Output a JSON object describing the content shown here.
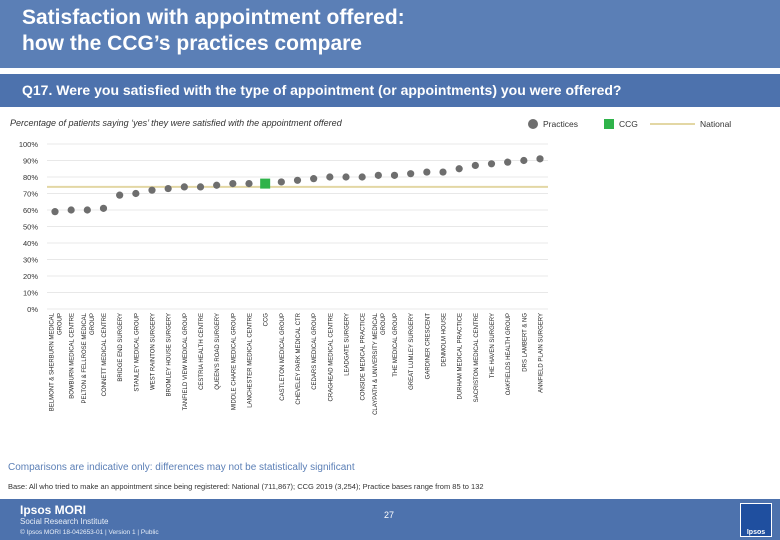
{
  "header": {
    "title_line1": "Satisfaction with appointment offered:",
    "title_line2": "how the CCG’s practices compare"
  },
  "question": "Q17. Were you satisfied with the type of appointment (or appointments) you were offered?",
  "subtitle": "Percentage of patients saying ‘yes’ they were satisfied with the appointment offered",
  "legend": {
    "practices": "Practices",
    "ccg": "CCG",
    "national": "National"
  },
  "colors": {
    "practice": "#6e6e6e",
    "ccg": "#2fb34a",
    "national": "#e3d7a4",
    "grid": "#e8e8e8",
    "header": "#5b7fb6"
  },
  "chart_data": {
    "type": "scatter",
    "title": "Percentage of patients saying ‘yes’ they were satisfied with the appointment offered",
    "ylim": [
      0,
      100
    ],
    "yticks": [
      "0%",
      "10%",
      "20%",
      "30%",
      "40%",
      "50%",
      "60%",
      "70%",
      "80%",
      "90%",
      "100%"
    ],
    "national_value": 74,
    "ccg_value": 76,
    "categories": [
      "BELMONT & SHERBURN MEDICAL GROUP",
      "BOWBURN MEDICAL CENTRE",
      "PELTON & FELLROSE MEDICAL GROUP",
      "CONNETT MEDICAL CENTRE",
      "BRIDGE END SURGERY",
      "STANLEY MEDICAL GROUP",
      "WEST RAINTON SURGERY",
      "BROMLEY HOUSE SURGERY",
      "TANFIELD VIEW MEDICAL GROUP",
      "CESTRIA HEALTH CENTRE",
      "QUEEN'S ROAD SURGERY",
      "MIDDLE CHARE MEDICAL GROUP",
      "LANCHESTER MEDICAL CENTRE",
      "CCG",
      "CASTLETON MEDICAL GROUP",
      "CHEVELEY PARK MEDICAL CTR",
      "CEDARS MEDICAL GROUP",
      "CRAGHEAD MEDICAL CENTRE",
      "LEADGATE SURGERY",
      "CONSIDE MEDICAL PRACTICE",
      "CLAYPATH & UNIVERSITY MEDICAL GROUP",
      "THE MEDICAL GROUP",
      "GREAT LUMLEY SURGERY",
      "GARDINER CRESCENT",
      "DENMOLM HOUSE",
      "DURHAM MEDICAL PRACTICE",
      "SACRISTON MEDICAL CENTRE",
      "THE HAVEN SURGERY",
      "OAKFIELDS HEALTH GROUP",
      "DRS LAMBERT & NG",
      "ANNFIELD PLAIN SURGERY"
    ],
    "values": [
      59,
      60,
      60,
      61,
      69,
      70,
      72,
      73,
      74,
      74,
      75,
      76,
      76,
      76,
      77,
      78,
      79,
      80,
      80,
      80,
      81,
      81,
      82,
      83,
      83,
      85,
      87,
      88,
      89,
      90,
      91
    ]
  },
  "footnote": "Comparisons are indicative only: differences may not be statistically significant",
  "base": "Base: All who tried to make an appointment since being registered: National (711,867); CCG 2019 (3,254); Practice bases range from 85 to 132",
  "footer": {
    "brand": "Ipsos MORI",
    "brand_sub": "Social Research Institute",
    "copyright": "© Ipsos MORI     18-042653-01 | Version 1 | Public",
    "page": "27",
    "logo": "Ipsos"
  }
}
